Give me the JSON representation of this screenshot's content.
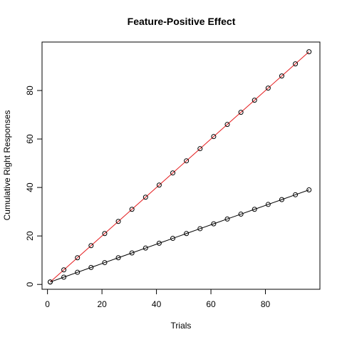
{
  "chart_data": {
    "type": "line",
    "title": "Feature-Positive Effect",
    "xlabel": "Trials",
    "ylabel": "Cumulative Right Responses",
    "xlim": [
      -2,
      100
    ],
    "ylim": [
      -2,
      100
    ],
    "x_ticks": [
      0,
      20,
      40,
      60,
      80
    ],
    "y_ticks": [
      0,
      20,
      40,
      60,
      80
    ],
    "grid": false,
    "legend": "none",
    "x": [
      1,
      6,
      11,
      16,
      21,
      26,
      31,
      36,
      41,
      46,
      51,
      56,
      61,
      66,
      71,
      76,
      81,
      86,
      91,
      96
    ],
    "series": [
      {
        "color": "#e41a1c",
        "marker": "open-circle",
        "values": [
          1,
          6,
          11,
          16,
          21,
          26,
          31,
          36,
          41,
          46,
          51,
          56,
          61,
          66,
          71,
          76,
          81,
          86,
          91,
          96
        ]
      },
      {
        "color": "#000000",
        "marker": "open-circle",
        "values": [
          1,
          3,
          5,
          7,
          9,
          11,
          13,
          15,
          17,
          19,
          21,
          23,
          25,
          27,
          29,
          31,
          33,
          35,
          37,
          39
        ]
      }
    ]
  }
}
